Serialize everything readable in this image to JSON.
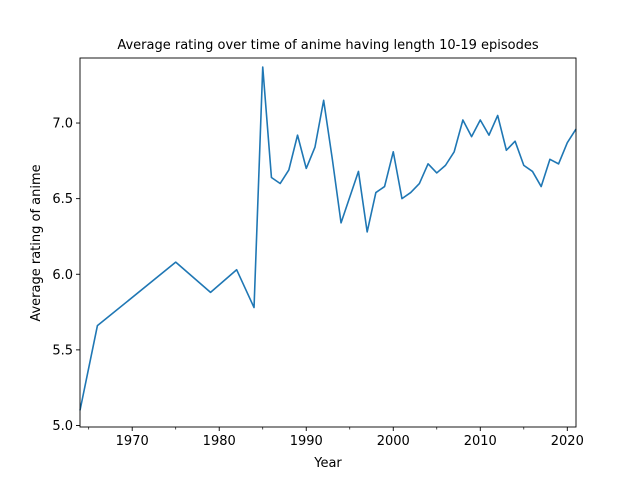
{
  "chart_data": {
    "type": "line",
    "title": "Average rating over time of anime having length 10-19 episodes",
    "xlabel": "Year",
    "ylabel": "Average rating of anime",
    "xlim": [
      1964,
      2021
    ],
    "ylim": [
      4.99,
      7.43
    ],
    "x_major_ticks": [
      1970,
      1980,
      1990,
      2000,
      2010,
      2020
    ],
    "x_minor_ticks": [
      1965,
      1975,
      1985,
      1995,
      2005,
      2015
    ],
    "y_ticks": [
      5.0,
      5.5,
      6.0,
      6.5,
      7.0
    ],
    "x_tick_labels": [
      "1970",
      "1980",
      "1990",
      "2000",
      "2010",
      "2020"
    ],
    "y_tick_labels": [
      "5.0",
      "5.5",
      "6.0",
      "6.5",
      "7.0"
    ],
    "grid": false,
    "legend": "none",
    "line_color": "#1f77b4",
    "series": [
      {
        "x": [
          1964,
          1966,
          1975,
          1979,
          1982,
          1984,
          1985,
          1986,
          1987,
          1988,
          1989,
          1990,
          1991,
          1992,
          1993,
          1994,
          1996,
          1997,
          1998,
          1999,
          2000,
          2001,
          2002,
          2003,
          2004,
          2005,
          2006,
          2007,
          2008,
          2009,
          2010,
          2011,
          2012,
          2013,
          2014,
          2015,
          2016,
          2017,
          2018,
          2019,
          2020,
          2021
        ],
        "y": [
          5.1,
          5.66,
          6.08,
          5.88,
          6.03,
          5.78,
          7.37,
          6.64,
          6.6,
          6.69,
          6.92,
          6.7,
          6.84,
          7.15,
          6.76,
          6.34,
          6.68,
          6.28,
          6.54,
          6.58,
          6.81,
          6.5,
          6.54,
          6.6,
          6.73,
          6.67,
          6.72,
          6.81,
          7.02,
          6.91,
          7.02,
          6.92,
          7.05,
          6.82,
          6.88,
          6.72,
          6.68,
          6.58,
          6.76,
          6.73,
          6.87,
          6.96
        ]
      }
    ]
  }
}
